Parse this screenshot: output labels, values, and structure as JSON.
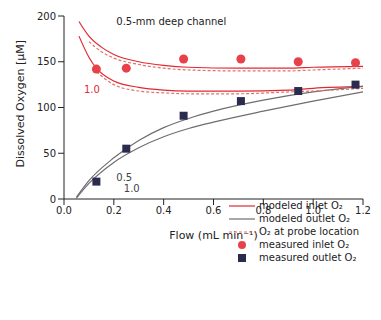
{
  "chart_data": {
    "type": "line",
    "x_label": "Flow (mL min⁻¹)",
    "y_label": "Dissolved Oxygen [μM]",
    "xlim": [
      0,
      1.2
    ],
    "xticks": [
      {
        "value": 0,
        "label": "0.0"
      },
      0.2,
      0.4,
      0.6,
      0.8,
      {
        "value": 1,
        "label": "1.0"
      },
      1.2
    ],
    "ylim": [
      0,
      200
    ],
    "yticks": [
      0,
      50,
      100,
      150,
      200
    ],
    "legend": "lower right",
    "series": [
      {
        "name": "modeled inlet O₂",
        "type": "line",
        "line_style": "solid",
        "color": "#e02a32",
        "x": [
          0.06,
          0.1,
          0.15,
          0.2,
          0.3,
          0.4,
          0.5,
          0.7,
          0.9,
          1.0,
          1.2
        ],
        "values": [
          194,
          178,
          166,
          158,
          150,
          146,
          144,
          143,
          143,
          144,
          145
        ]
      },
      {
        "name": "modeled inlet O₂",
        "type": "line",
        "line_style": "solid",
        "color": "#e02a32",
        "x": [
          0.06,
          0.1,
          0.13,
          0.2,
          0.3,
          0.4,
          0.5,
          0.7,
          0.9,
          1.0,
          1.2
        ],
        "values": [
          178,
          155,
          143,
          129,
          122,
          119,
          118,
          118,
          119,
          121,
          123
        ]
      },
      {
        "name": "modeled outlet O₂",
        "type": "line",
        "line_style": "solid",
        "color": "#6e6e6e",
        "x": [
          0.05,
          0.1,
          0.2,
          0.3,
          0.4,
          0.5,
          0.6,
          0.8,
          1.0,
          1.2
        ],
        "values": [
          2,
          20,
          45,
          64,
          78,
          88,
          96,
          108,
          117,
          123
        ]
      },
      {
        "name": "modeled outlet O₂",
        "type": "line",
        "line_style": "solid",
        "color": "#6e6e6e",
        "x": [
          0.05,
          0.1,
          0.2,
          0.3,
          0.4,
          0.5,
          0.6,
          0.8,
          1.0,
          1.2
        ],
        "values": [
          1,
          17,
          40,
          56,
          68,
          77,
          84,
          96,
          107,
          117
        ]
      },
      {
        "name": "O₂ at probe location",
        "type": "line",
        "line_style": "dashed",
        "color": "#e07070",
        "x": [
          0.1,
          0.15,
          0.2,
          0.3,
          0.4,
          0.5,
          0.7,
          0.9,
          1.0,
          1.2
        ],
        "values": [
          172,
          161,
          154,
          147,
          143,
          141,
          140,
          140,
          141,
          143
        ]
      },
      {
        "name": "O₂ at probe location",
        "type": "line",
        "line_style": "dashed",
        "color": "#e07070",
        "x": [
          0.13,
          0.2,
          0.3,
          0.4,
          0.5,
          0.7,
          0.9,
          1.0,
          1.2
        ],
        "values": [
          139,
          125,
          118,
          116,
          115,
          115,
          117,
          118,
          121
        ]
      },
      {
        "name": "measured inlet O₂",
        "type": "scatter",
        "marker": "circle",
        "color": "#e8414a",
        "x": [
          0.13,
          0.25,
          0.48,
          0.71,
          0.94,
          1.17
        ],
        "values": [
          142,
          143,
          153,
          153,
          150,
          149
        ]
      },
      {
        "name": "measured outlet O₂",
        "type": "scatter",
        "marker": "square",
        "color": "#2b2b4f",
        "x": [
          0.13,
          0.25,
          0.48,
          0.71,
          0.94,
          1.17
        ],
        "values": [
          19,
          55,
          91,
          107,
          118,
          125
        ]
      }
    ],
    "annotations": [
      {
        "text": "0.5-mm deep channel",
        "x": 0.19,
        "y": 194,
        "color": "#222222"
      },
      {
        "text": "1.0",
        "x": 0.06,
        "y": 120,
        "color": "#e02a32"
      },
      {
        "text": "0.5",
        "x": 0.19,
        "y": 24,
        "color": "#444444"
      },
      {
        "text": "1.0",
        "x": 0.22,
        "y": 11,
        "color": "#444444"
      }
    ]
  }
}
